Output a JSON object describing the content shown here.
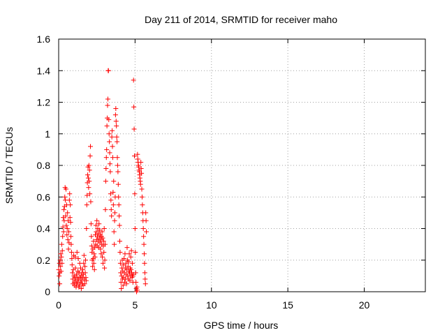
{
  "chart_data": {
    "type": "scatter",
    "title": "Day 211 of 2014, SRMTID for receiver maho",
    "xlabel": "GPS time / hours",
    "ylabel": "SRMTID / TECUs",
    "xlim": [
      0,
      24
    ],
    "ylim": [
      0,
      1.6
    ],
    "xticks": [
      "0",
      "5",
      "10",
      "15",
      "20"
    ],
    "yticks": [
      "0",
      "0.2",
      "0.4",
      "0.6",
      "0.8",
      "1",
      "1.2",
      "1.4",
      "1.6"
    ],
    "grid": true,
    "marker": "+",
    "color": "#ff0000",
    "series": [
      {
        "points": [
          [
            0.0,
            0.14
          ],
          [
            0.03,
            0.1
          ],
          [
            0.05,
            0.18
          ],
          [
            0.07,
            0.05
          ],
          [
            0.08,
            0.12
          ],
          [
            0.1,
            0.2
          ],
          [
            0.12,
            0.16
          ],
          [
            0.14,
            0.24
          ],
          [
            0.16,
            0.13
          ],
          [
            0.18,
            0.22
          ],
          [
            0.2,
            0.3
          ],
          [
            0.22,
            0.18
          ],
          [
            0.24,
            0.26
          ],
          [
            0.26,
            0.35
          ],
          [
            0.28,
            0.41
          ],
          [
            0.3,
            0.47
          ],
          [
            0.32,
            0.38
          ],
          [
            0.34,
            0.52
          ],
          [
            0.36,
            0.45
          ],
          [
            0.38,
            0.54
          ],
          [
            0.4,
            0.6
          ],
          [
            0.42,
            0.66
          ],
          [
            0.44,
            0.58
          ],
          [
            0.46,
            0.48
          ],
          [
            0.48,
            0.65
          ],
          [
            0.5,
            0.42
          ],
          [
            0.52,
            0.55
          ],
          [
            0.54,
            0.36
          ],
          [
            0.56,
            0.4
          ],
          [
            0.58,
            0.5
          ],
          [
            0.6,
            0.33
          ],
          [
            0.62,
            0.45
          ],
          [
            0.64,
            0.27
          ],
          [
            0.66,
            0.38
          ],
          [
            0.68,
            0.31
          ],
          [
            0.7,
            0.58
          ],
          [
            0.72,
            0.62
          ],
          [
            0.74,
            0.47
          ],
          [
            0.76,
            0.55
          ],
          [
            0.78,
            0.44
          ],
          [
            0.8,
            0.35
          ],
          [
            0.82,
            0.3
          ],
          [
            0.84,
            0.25
          ],
          [
            0.86,
            0.21
          ],
          [
            0.88,
            0.17
          ],
          [
            0.9,
            0.12
          ],
          [
            0.92,
            0.08
          ],
          [
            0.94,
            0.05
          ],
          [
            0.96,
            0.14
          ],
          [
            0.98,
            0.23
          ],
          [
            1.0,
            0.1
          ],
          [
            1.02,
            0.06
          ],
          [
            1.04,
            0.04
          ],
          [
            1.06,
            0.09
          ],
          [
            1.08,
            0.22
          ],
          [
            1.1,
            0.15
          ],
          [
            1.12,
            0.07
          ],
          [
            1.14,
            0.03
          ],
          [
            1.16,
            0.11
          ],
          [
            1.18,
            0.05
          ],
          [
            1.2,
            0.25
          ],
          [
            1.22,
            0.09
          ],
          [
            1.24,
            0.06
          ],
          [
            1.26,
            0.13
          ],
          [
            1.28,
            0.21
          ],
          [
            1.3,
            0.08
          ],
          [
            1.32,
            0.03
          ],
          [
            1.34,
            0.12
          ],
          [
            1.36,
            0.04
          ],
          [
            1.38,
            0.18
          ],
          [
            1.4,
            0.09
          ],
          [
            1.42,
            0.06
          ],
          [
            1.44,
            0.15
          ],
          [
            1.46,
            0.1
          ],
          [
            1.48,
            0.02
          ],
          [
            1.5,
            0.07
          ],
          [
            1.52,
            0.12
          ],
          [
            1.54,
            0.05
          ],
          [
            1.56,
            0.09
          ],
          [
            1.58,
            0.14
          ],
          [
            1.6,
            0.04
          ],
          [
            1.62,
            0.11
          ],
          [
            1.64,
            0.18
          ],
          [
            1.66,
            0.23
          ],
          [
            1.68,
            0.08
          ],
          [
            1.7,
            0.05
          ],
          [
            1.72,
            0.16
          ],
          [
            1.74,
            0.12
          ],
          [
            1.76,
            0.2
          ],
          [
            1.78,
            0.09
          ],
          [
            1.8,
            0.07
          ],
          [
            1.82,
            0.4
          ],
          [
            1.84,
            0.55
          ],
          [
            1.86,
            0.61
          ],
          [
            1.88,
            0.69
          ],
          [
            1.9,
            0.74
          ],
          [
            1.92,
            0.79
          ],
          [
            1.94,
            0.72
          ],
          [
            1.96,
            0.66
          ],
          [
            1.98,
            0.8
          ],
          [
            2.0,
            0.7
          ],
          [
            2.02,
            0.77
          ],
          [
            2.04,
            0.62
          ],
          [
            2.06,
            0.86
          ],
          [
            2.08,
            0.92
          ],
          [
            2.1,
            0.57
          ],
          [
            2.12,
            0.43
          ],
          [
            2.14,
            0.35
          ],
          [
            2.16,
            0.29
          ],
          [
            2.18,
            0.25
          ],
          [
            2.2,
            0.2
          ],
          [
            2.22,
            0.16
          ],
          [
            2.24,
            0.27
          ],
          [
            2.26,
            0.21
          ],
          [
            2.28,
            0.32
          ],
          [
            2.3,
            0.18
          ],
          [
            2.32,
            0.24
          ],
          [
            2.34,
            0.14
          ],
          [
            2.36,
            0.28
          ],
          [
            2.38,
            0.22
          ],
          [
            2.4,
            0.36
          ],
          [
            2.42,
            0.3
          ],
          [
            2.44,
            0.42
          ],
          [
            2.46,
            0.38
          ],
          [
            2.48,
            0.33
          ],
          [
            2.5,
            0.45
          ],
          [
            2.52,
            0.29
          ],
          [
            2.54,
            0.35
          ],
          [
            2.56,
            0.4
          ],
          [
            2.58,
            0.32
          ],
          [
            2.6,
            0.37
          ],
          [
            2.62,
            0.28
          ],
          [
            2.64,
            0.43
          ],
          [
            2.66,
            0.34
          ],
          [
            2.68,
            0.39
          ],
          [
            2.7,
            0.31
          ],
          [
            2.72,
            0.36
          ],
          [
            2.74,
            0.27
          ],
          [
            2.76,
            0.33
          ],
          [
            2.78,
            0.24
          ],
          [
            2.8,
            0.35
          ],
          [
            2.82,
            0.3
          ],
          [
            2.84,
            0.38
          ],
          [
            2.86,
            0.22
          ],
          [
            2.88,
            0.34
          ],
          [
            2.9,
            0.18
          ],
          [
            2.92,
            0.29
          ],
          [
            2.94,
            0.32
          ],
          [
            2.96,
            0.25
          ],
          [
            2.98,
            0.4
          ],
          [
            3.0,
            0.15
          ],
          [
            3.02,
            0.2
          ],
          [
            3.04,
            0.3
          ],
          [
            3.06,
            0.52
          ],
          [
            3.08,
            0.7
          ],
          [
            3.1,
            0.78
          ],
          [
            3.12,
            0.85
          ],
          [
            3.14,
            0.9
          ],
          [
            3.16,
            1.05
          ],
          [
            3.18,
            1.1
          ],
          [
            3.2,
            1.18
          ],
          [
            3.22,
            1.22
          ],
          [
            3.24,
            1.4
          ],
          [
            3.26,
            1.4
          ],
          [
            3.28,
            1.09
          ],
          [
            3.3,
            1.0
          ],
          [
            3.32,
            0.95
          ],
          [
            3.34,
            0.88
          ],
          [
            3.36,
            0.81
          ],
          [
            3.38,
            0.76
          ],
          [
            3.4,
            0.62
          ],
          [
            3.42,
            0.58
          ],
          [
            3.44,
            0.52
          ],
          [
            3.46,
            0.48
          ],
          [
            3.48,
            0.98
          ],
          [
            3.5,
            1.02
          ],
          [
            3.52,
            0.92
          ],
          [
            3.54,
            0.85
          ],
          [
            3.56,
            0.63
          ],
          [
            3.58,
            0.55
          ],
          [
            3.6,
            0.7
          ],
          [
            3.62,
            0.38
          ],
          [
            3.64,
            0.3
          ],
          [
            3.66,
            0.45
          ],
          [
            3.68,
            0.5
          ],
          [
            3.7,
            0.6
          ],
          [
            3.72,
            1.12
          ],
          [
            3.74,
            1.16
          ],
          [
            3.76,
            1.08
          ],
          [
            3.78,
            1.05
          ],
          [
            3.8,
            0.98
          ],
          [
            3.82,
            0.95
          ],
          [
            3.84,
            0.85
          ],
          [
            3.86,
            0.8
          ],
          [
            3.88,
            0.76
          ],
          [
            3.9,
            0.68
          ],
          [
            3.92,
            0.6
          ],
          [
            3.94,
            0.55
          ],
          [
            3.96,
            0.48
          ],
          [
            3.98,
            0.42
          ],
          [
            4.0,
            0.32
          ],
          [
            4.02,
            0.25
          ],
          [
            4.04,
            0.18
          ],
          [
            4.06,
            0.12
          ],
          [
            4.08,
            0.06
          ],
          [
            4.1,
            0.02
          ],
          [
            4.12,
            0.1
          ],
          [
            4.14,
            0.15
          ],
          [
            4.16,
            0.2
          ],
          [
            4.18,
            0.08
          ],
          [
            4.2,
            0.13
          ],
          [
            4.22,
            0.04
          ],
          [
            4.24,
            0.17
          ],
          [
            4.26,
            0.09
          ],
          [
            4.28,
            0.21
          ],
          [
            4.3,
            0.12
          ],
          [
            4.32,
            0.06
          ],
          [
            4.34,
            0.24
          ],
          [
            4.36,
            0.15
          ],
          [
            4.38,
            0.08
          ],
          [
            4.4,
            0.18
          ],
          [
            4.42,
            0.11
          ],
          [
            4.44,
            0.05
          ],
          [
            4.46,
            0.14
          ],
          [
            4.48,
            0.28
          ],
          [
            4.5,
            0.2
          ],
          [
            4.52,
            0.1
          ],
          [
            4.54,
            0.16
          ],
          [
            4.56,
            0.08
          ],
          [
            4.58,
            0.19
          ],
          [
            4.6,
            0.13
          ],
          [
            4.62,
            0.24
          ],
          [
            4.64,
            0.12
          ],
          [
            4.66,
            0.07
          ],
          [
            4.68,
            0.15
          ],
          [
            4.7,
            0.1
          ],
          [
            4.72,
            0.22
          ],
          [
            4.74,
            0.14
          ],
          [
            4.76,
            0.26
          ],
          [
            4.78,
            0.12
          ],
          [
            4.8,
            0.09
          ],
          [
            4.82,
            0.18
          ],
          [
            4.84,
            0.1
          ],
          [
            4.86,
            0.06
          ],
          [
            4.88,
            0.11
          ],
          [
            4.9,
            1.34
          ],
          [
            4.92,
            1.17
          ],
          [
            4.94,
            1.03
          ],
          [
            4.96,
            0.86
          ],
          [
            4.98,
            0.62
          ],
          [
            5.0,
            0.4
          ],
          [
            5.02,
            0.25
          ],
          [
            5.04,
            0.12
          ],
          [
            5.06,
            0.06
          ],
          [
            5.08,
            0.02
          ],
          [
            5.1,
            0.0
          ],
          [
            5.12,
            0.03
          ],
          [
            5.14,
            0.01
          ],
          [
            5.16,
            0.87
          ],
          [
            5.18,
            0.84
          ],
          [
            5.2,
            0.82
          ],
          [
            5.22,
            0.8
          ],
          [
            5.24,
            0.79
          ],
          [
            5.26,
            0.77
          ],
          [
            5.28,
            0.76
          ],
          [
            5.3,
            0.74
          ],
          [
            5.32,
            0.72
          ],
          [
            5.34,
            0.7
          ],
          [
            5.36,
            0.68
          ],
          [
            5.38,
            0.82
          ],
          [
            5.4,
            0.78
          ],
          [
            5.42,
            0.75
          ],
          [
            5.44,
            0.65
          ],
          [
            5.46,
            0.6
          ],
          [
            5.48,
            0.55
          ],
          [
            5.5,
            0.5
          ],
          [
            5.52,
            0.45
          ],
          [
            5.54,
            0.4
          ],
          [
            5.56,
            0.35
          ],
          [
            5.58,
            0.3
          ],
          [
            5.6,
            0.24
          ],
          [
            5.62,
            0.18
          ],
          [
            5.64,
            0.12
          ],
          [
            5.66,
            0.08
          ],
          [
            5.68,
            0.05
          ],
          [
            5.7,
            0.5
          ],
          [
            5.72,
            0.45
          ],
          [
            5.74,
            0.38
          ]
        ]
      }
    ]
  }
}
